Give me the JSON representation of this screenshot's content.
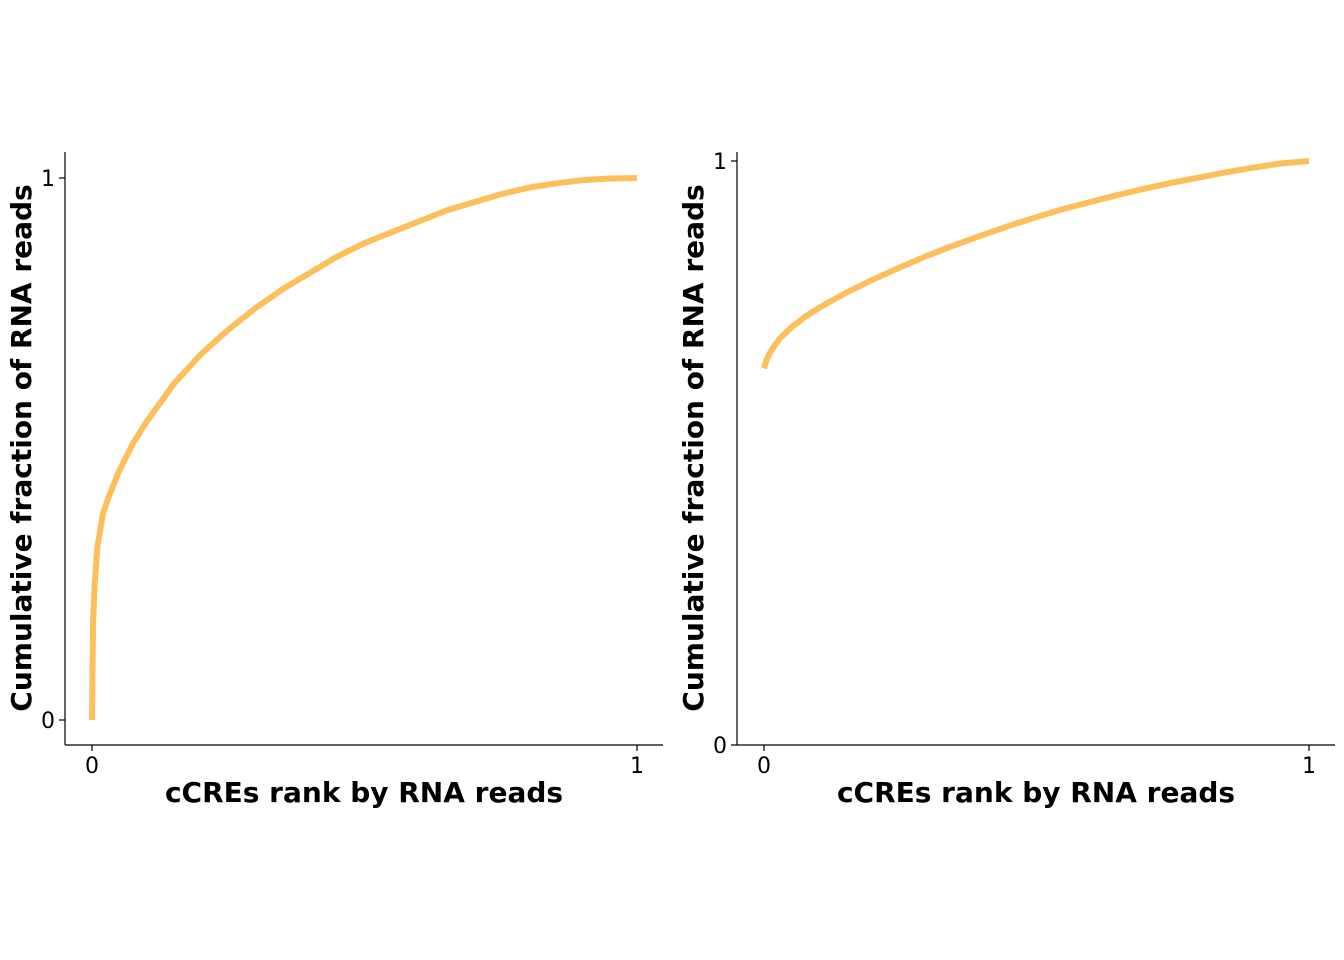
{
  "colors": {
    "curve": "#FDBF5C",
    "axis": "#000000",
    "background": "#ffffff"
  },
  "chart_data": [
    {
      "type": "line",
      "title": "",
      "xlabel": "cCREs rank by RNA reads",
      "ylabel": "Cumulative fraction of RNA reads",
      "xlim": [
        0,
        1
      ],
      "ylim": [
        0,
        1
      ],
      "x_ticks": [
        "0",
        "1"
      ],
      "y_ticks": [
        "0",
        "1"
      ],
      "grid": false,
      "legend": "none",
      "series": [
        {
          "x": [
            0,
            0.002,
            0.005,
            0.01,
            0.02,
            0.03,
            0.05,
            0.075,
            0.1,
            0.15,
            0.2,
            0.25,
            0.3,
            0.35,
            0.4,
            0.45,
            0.5,
            0.55,
            0.6,
            0.65,
            0.7,
            0.75,
            0.8,
            0.85,
            0.9,
            0.95,
            1.0
          ],
          "y": [
            0,
            0.18,
            0.25,
            0.32,
            0.38,
            0.41,
            0.46,
            0.51,
            0.55,
            0.62,
            0.675,
            0.72,
            0.76,
            0.795,
            0.825,
            0.855,
            0.88,
            0.9,
            0.92,
            0.94,
            0.955,
            0.97,
            0.982,
            0.99,
            0.996,
            0.999,
            1.0
          ]
        }
      ]
    },
    {
      "type": "line",
      "title": "",
      "xlabel": "cCREs rank by RNA reads",
      "ylabel": "Cumulative fraction of RNA reads",
      "xlim": [
        0,
        1
      ],
      "ylim": [
        0,
        1
      ],
      "x_ticks": [
        "0",
        "1"
      ],
      "y_ticks": [
        "0",
        "1"
      ],
      "grid": false,
      "legend": "none",
      "series": [
        {
          "x": [
            0,
            0.005,
            0.01,
            0.02,
            0.03,
            0.05,
            0.075,
            0.1,
            0.15,
            0.2,
            0.25,
            0.3,
            0.35,
            0.4,
            0.45,
            0.5,
            0.55,
            0.6,
            0.65,
            0.7,
            0.75,
            0.8,
            0.85,
            0.9,
            0.95,
            1.0
          ],
          "y": [
            0.645,
            0.66,
            0.67,
            0.685,
            0.697,
            0.715,
            0.733,
            0.748,
            0.774,
            0.797,
            0.818,
            0.838,
            0.856,
            0.873,
            0.889,
            0.904,
            0.918,
            0.93,
            0.942,
            0.953,
            0.963,
            0.972,
            0.981,
            0.989,
            0.996,
            1.0
          ]
        }
      ]
    }
  ]
}
